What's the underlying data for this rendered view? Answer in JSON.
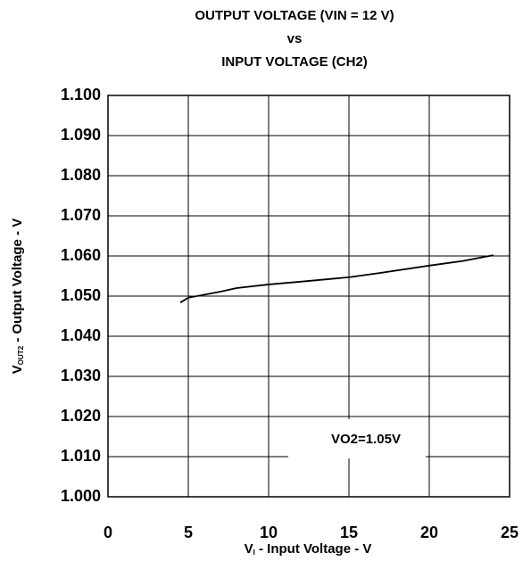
{
  "chart_data": {
    "type": "line",
    "title": [
      "OUTPUT VOLTAGE (VIN = 12 V)",
      "vs",
      "INPUT VOLTAGE (CH2)"
    ],
    "xlabel": {
      "main": "V",
      "sub": "I",
      "rest": " - Input Voltage - V"
    },
    "ylabel": {
      "main": "V",
      "sub": "OUT2",
      "rest": " - Output Voltage - V"
    },
    "annotation": "VO2=1.05V",
    "x": [
      4.5,
      5,
      7,
      8,
      10,
      12,
      15,
      17,
      20,
      22,
      24
    ],
    "series": [
      {
        "name": "VO2",
        "color": "#000000",
        "values": [
          1.0484,
          1.0496,
          1.0511,
          1.052,
          1.0529,
          1.0536,
          1.0547,
          1.0558,
          1.0576,
          1.0587,
          1.0602
        ]
      }
    ],
    "xlim": [
      0,
      25
    ],
    "xticks": [
      0,
      5,
      10,
      15,
      20,
      25
    ],
    "ylim": [
      1.0,
      1.1
    ],
    "yticks": [
      {
        "value": 1.0,
        "label": "1.000"
      },
      {
        "value": 1.01,
        "label": "1.010"
      },
      {
        "value": 1.02,
        "label": "1.020"
      },
      {
        "value": 1.03,
        "label": "1.030"
      },
      {
        "value": 1.04,
        "label": "1.040"
      },
      {
        "value": 1.05,
        "label": "1.050"
      },
      {
        "value": 1.06,
        "label": "1.060"
      },
      {
        "value": 1.07,
        "label": "1.070"
      },
      {
        "value": 1.08,
        "label": "1.080"
      },
      {
        "value": 1.09,
        "label": "1.090"
      },
      {
        "value": 1.1,
        "label": "1.100"
      }
    ],
    "grid": true
  }
}
